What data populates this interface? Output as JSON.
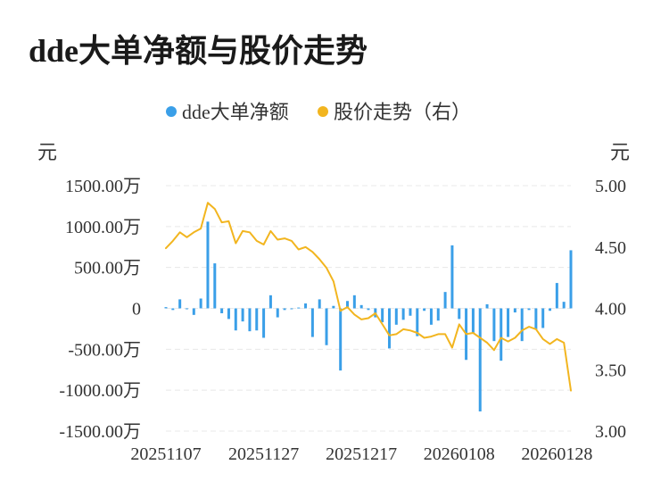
{
  "title": "dde大单净额与股价走势",
  "legend": {
    "position": "top-center",
    "items": [
      {
        "label": "dde大单净额",
        "color": "#3a9fe8"
      },
      {
        "label": "股价走势（右）",
        "color": "#f2b51f"
      }
    ]
  },
  "chart_data": {
    "type": "bar+line",
    "grid": true,
    "left_axis": {
      "unit": "元",
      "ylim": [
        -1500,
        1500
      ],
      "ticks": [
        1500,
        1000,
        500,
        0,
        -500,
        -1000,
        -1500
      ],
      "tick_labels": [
        "1500.00万",
        "1000.00万",
        "500.00万",
        "0",
        "-500.00万",
        "-1000.00万",
        "-1500.00万"
      ]
    },
    "right_axis": {
      "unit": "元",
      "ylim": [
        3.0,
        5.0
      ],
      "ticks": [
        5.0,
        4.5,
        4.0,
        3.5,
        3.0
      ],
      "tick_labels": [
        "5.00",
        "4.50",
        "4.00",
        "3.50",
        "3.00"
      ]
    },
    "x_tick_labels": [
      {
        "label": "20251107",
        "index": 0
      },
      {
        "label": "20251127",
        "index": 14
      },
      {
        "label": "20251217",
        "index": 28
      },
      {
        "label": "20260108",
        "index": 42
      },
      {
        "label": "20260128",
        "index": 56
      }
    ],
    "series": [
      {
        "name": "dde大单净额",
        "type": "bar",
        "axis": "left",
        "color": "#3a9fe8",
        "values": [
          15,
          -20,
          110,
          0,
          -80,
          120,
          1060,
          550,
          -60,
          -130,
          -270,
          -160,
          -280,
          -270,
          -360,
          160,
          -110,
          -20,
          -10,
          10,
          60,
          -350,
          110,
          -450,
          30,
          -760,
          90,
          160,
          40,
          -20,
          -110,
          -170,
          -490,
          -200,
          -140,
          -90,
          -340,
          -30,
          -200,
          -150,
          200,
          770,
          -130,
          -630,
          -300,
          -1260,
          50,
          -400,
          -640,
          -350,
          -50,
          -400,
          -20,
          -260,
          -240,
          -30,
          310,
          80,
          710
        ]
      },
      {
        "name": "股价走势（右）",
        "type": "line",
        "axis": "right",
        "color": "#f2b51f",
        "values": [
          4.49,
          4.55,
          4.62,
          4.58,
          4.62,
          4.65,
          4.86,
          4.81,
          4.7,
          4.71,
          4.53,
          4.63,
          4.62,
          4.55,
          4.52,
          4.63,
          4.56,
          4.57,
          4.55,
          4.48,
          4.5,
          4.46,
          4.4,
          4.33,
          4.22,
          3.98,
          4.01,
          3.95,
          3.91,
          3.92,
          3.96,
          3.87,
          3.78,
          3.79,
          3.83,
          3.82,
          3.8,
          3.76,
          3.77,
          3.79,
          3.79,
          3.68,
          3.87,
          3.79,
          3.8,
          3.76,
          3.72,
          3.66,
          3.76,
          3.73,
          3.76,
          3.82,
          3.85,
          3.83,
          3.75,
          3.71,
          3.75,
          3.72,
          3.33
        ]
      }
    ]
  }
}
